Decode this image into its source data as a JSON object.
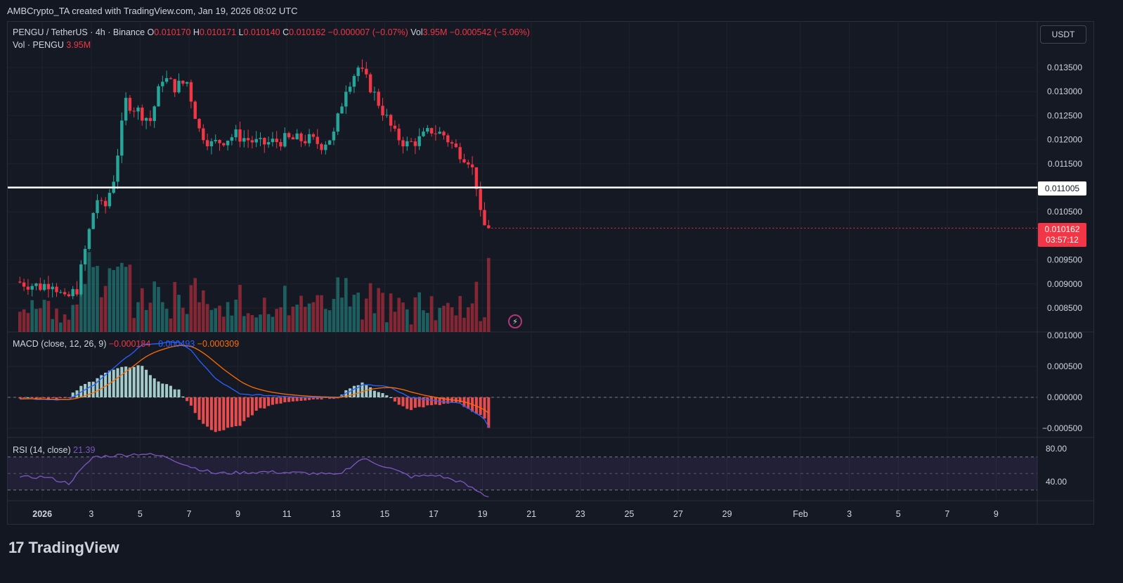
{
  "header": {
    "created_by": "AMBCrypto_TA created with TradingView.com, Jan 19, 2026 08:02 UTC"
  },
  "symbol": {
    "name": "PENGU / TetherUS · 4h · Binance",
    "o_label": "O",
    "o": "0.010170",
    "h_label": "H",
    "h": "0.010171",
    "l_label": "L",
    "l": "0.010140",
    "c_label": "C",
    "c": "0.010162",
    "change": "−0.000007 (−0.07%)",
    "vol_label": "Vol",
    "vol": "3.95M",
    "vol_change": "−0.000542 (−5.06%)"
  },
  "volume_legend": {
    "label": "Vol · PENGU",
    "value": "3.95M"
  },
  "currency_button": "USDT",
  "price_axis": [
    "0.013500",
    "0.013000",
    "0.012500",
    "0.012000",
    "0.011500",
    "0.010500",
    "0.009500",
    "0.009000",
    "0.008500"
  ],
  "price_axis_values": [
    0.0135,
    0.013,
    0.0125,
    0.012,
    0.0115,
    0.0105,
    0.0095,
    0.009,
    0.0085
  ],
  "horizontal_line": {
    "value": 0.011005,
    "label": "0.011005",
    "color": "#ffffff"
  },
  "last_price": {
    "value": 0.010162,
    "label": "0.010162",
    "countdown": "03:57:12",
    "color": "#f23645"
  },
  "macd": {
    "legend": "MACD (close, 12, 26, 9)",
    "hist": "−0.000184",
    "macd": "−0.000493",
    "signal": "−0.000309",
    "axis": [
      "0.001000",
      "0.000500",
      "0.000000",
      "−0.000500"
    ],
    "axis_values": [
      0.001,
      0.0005,
      0,
      -0.0005
    ]
  },
  "rsi": {
    "legend": "RSI (14, close)",
    "value": "21.39",
    "axis": [
      "80.00",
      "40.00"
    ],
    "axis_values": [
      80,
      40
    ],
    "upper_band": 70,
    "lower_band": 30,
    "mid": 50
  },
  "time_axis": [
    "2026",
    "3",
    "5",
    "7",
    "9",
    "11",
    "13",
    "15",
    "17",
    "19",
    "21",
    "23",
    "25",
    "27",
    "29",
    "Feb",
    "3",
    "5",
    "7",
    "9"
  ],
  "colors": {
    "up": "#26a69a",
    "down": "#f23645",
    "macd": "#2962ff",
    "signal": "#ff6d00",
    "rsi": "#7e57c2"
  },
  "branding": {
    "logo_text": "TradingView",
    "logo_mark": "17"
  },
  "chart_data": {
    "type": "candlestick",
    "symbol": "PENGU / TetherUS",
    "interval": "4h",
    "ylim": [
      0.008,
      0.0139
    ],
    "anchors": [
      [
        "Dec 31",
        0.00905
      ],
      [
        "Jan 1",
        0.00895
      ],
      [
        "Jan 1.5",
        0.00905
      ],
      [
        "Jan 2",
        0.00865
      ],
      [
        "Jan 2.5",
        0.0089
      ],
      [
        "Jan 3",
        0.0101
      ],
      [
        "Jan 3.3",
        0.0108
      ],
      [
        "Jan 3.6",
        0.0105
      ],
      [
        "Jan 4",
        0.0112
      ],
      [
        "Jan 4.5",
        0.0128
      ],
      [
        "Jan 5",
        0.0126
      ],
      [
        "Jan 5.5",
        0.0124
      ],
      [
        "Jan 6",
        0.0133
      ],
      [
        "Jan 6.5",
        0.0131
      ],
      [
        "Jan 7",
        0.0132
      ],
      [
        "Jan 7.5",
        0.0122
      ],
      [
        "Jan 8",
        0.0119
      ],
      [
        "Jan 9",
        0.0121
      ],
      [
        "Jan 10",
        0.0119
      ],
      [
        "Jan 11",
        0.012
      ],
      [
        "Jan 12",
        0.012
      ],
      [
        "Jan 12.5",
        0.0119
      ],
      [
        "Jan 13",
        0.0121
      ],
      [
        "Jan 13.5",
        0.0131
      ],
      [
        "Jan 14",
        0.0135
      ],
      [
        "Jan 14.5",
        0.0131
      ],
      [
        "Jan 15",
        0.0126
      ],
      [
        "Jan 15.5",
        0.0121
      ],
      [
        "Jan 16",
        0.0119
      ],
      [
        "Jan 16.5",
        0.012
      ],
      [
        "Jan 17",
        0.0122
      ],
      [
        "Jan 17.5",
        0.0121
      ],
      [
        "Jan 18",
        0.0118
      ],
      [
        "Jan 18.5",
        0.0116
      ],
      [
        "Jan 18.8",
        0.0112
      ],
      [
        "Jan 19",
        0.0104
      ],
      [
        "Jan 19.2",
        0.01016
      ]
    ],
    "macd_anchors": [
      [
        "Dec 31",
        -2e-05
      ],
      [
        "Jan 2",
        -4e-05
      ],
      [
        "Jan 3",
        0.0002
      ],
      [
        "Jan 5",
        0.00085
      ],
      [
        "Jan 6.5",
        0.0009
      ],
      [
        "Jan 7",
        0.00075
      ],
      [
        "Jan 8",
        0.0003
      ],
      [
        "Jan 9",
        5e-05
      ],
      [
        "Jan 12",
        0.0
      ],
      [
        "Jan 13",
        0.0
      ],
      [
        "Jan 14",
        0.0002
      ],
      [
        "Jan 15",
        0.00018
      ],
      [
        "Jan 16",
        0.0
      ],
      [
        "Jan 17",
        -6e-05
      ],
      [
        "Jan 18",
        -0.0001
      ],
      [
        "Jan 19",
        -0.00035
      ],
      [
        "Jan 19.2",
        -0.000493
      ]
    ],
    "rsi_anchors": [
      [
        "Dec 31",
        45
      ],
      [
        "Jan 1",
        46
      ],
      [
        "Jan 2",
        38
      ],
      [
        "Jan 3",
        70
      ],
      [
        "Jan 4",
        72
      ],
      [
        "Jan 5",
        74
      ],
      [
        "Jan 6",
        70
      ],
      [
        "Jan 7",
        58
      ],
      [
        "Jan 8",
        50
      ],
      [
        "Jan 10",
        52
      ],
      [
        "Jan 12",
        50
      ],
      [
        "Jan 13",
        48
      ],
      [
        "Jan 14",
        68
      ],
      [
        "Jan 15",
        58
      ],
      [
        "Jan 16",
        46
      ],
      [
        "Jan 17",
        48
      ],
      [
        "Jan 18",
        40
      ],
      [
        "Jan 19",
        24
      ],
      [
        "Jan 19.2",
        21.39
      ]
    ]
  }
}
